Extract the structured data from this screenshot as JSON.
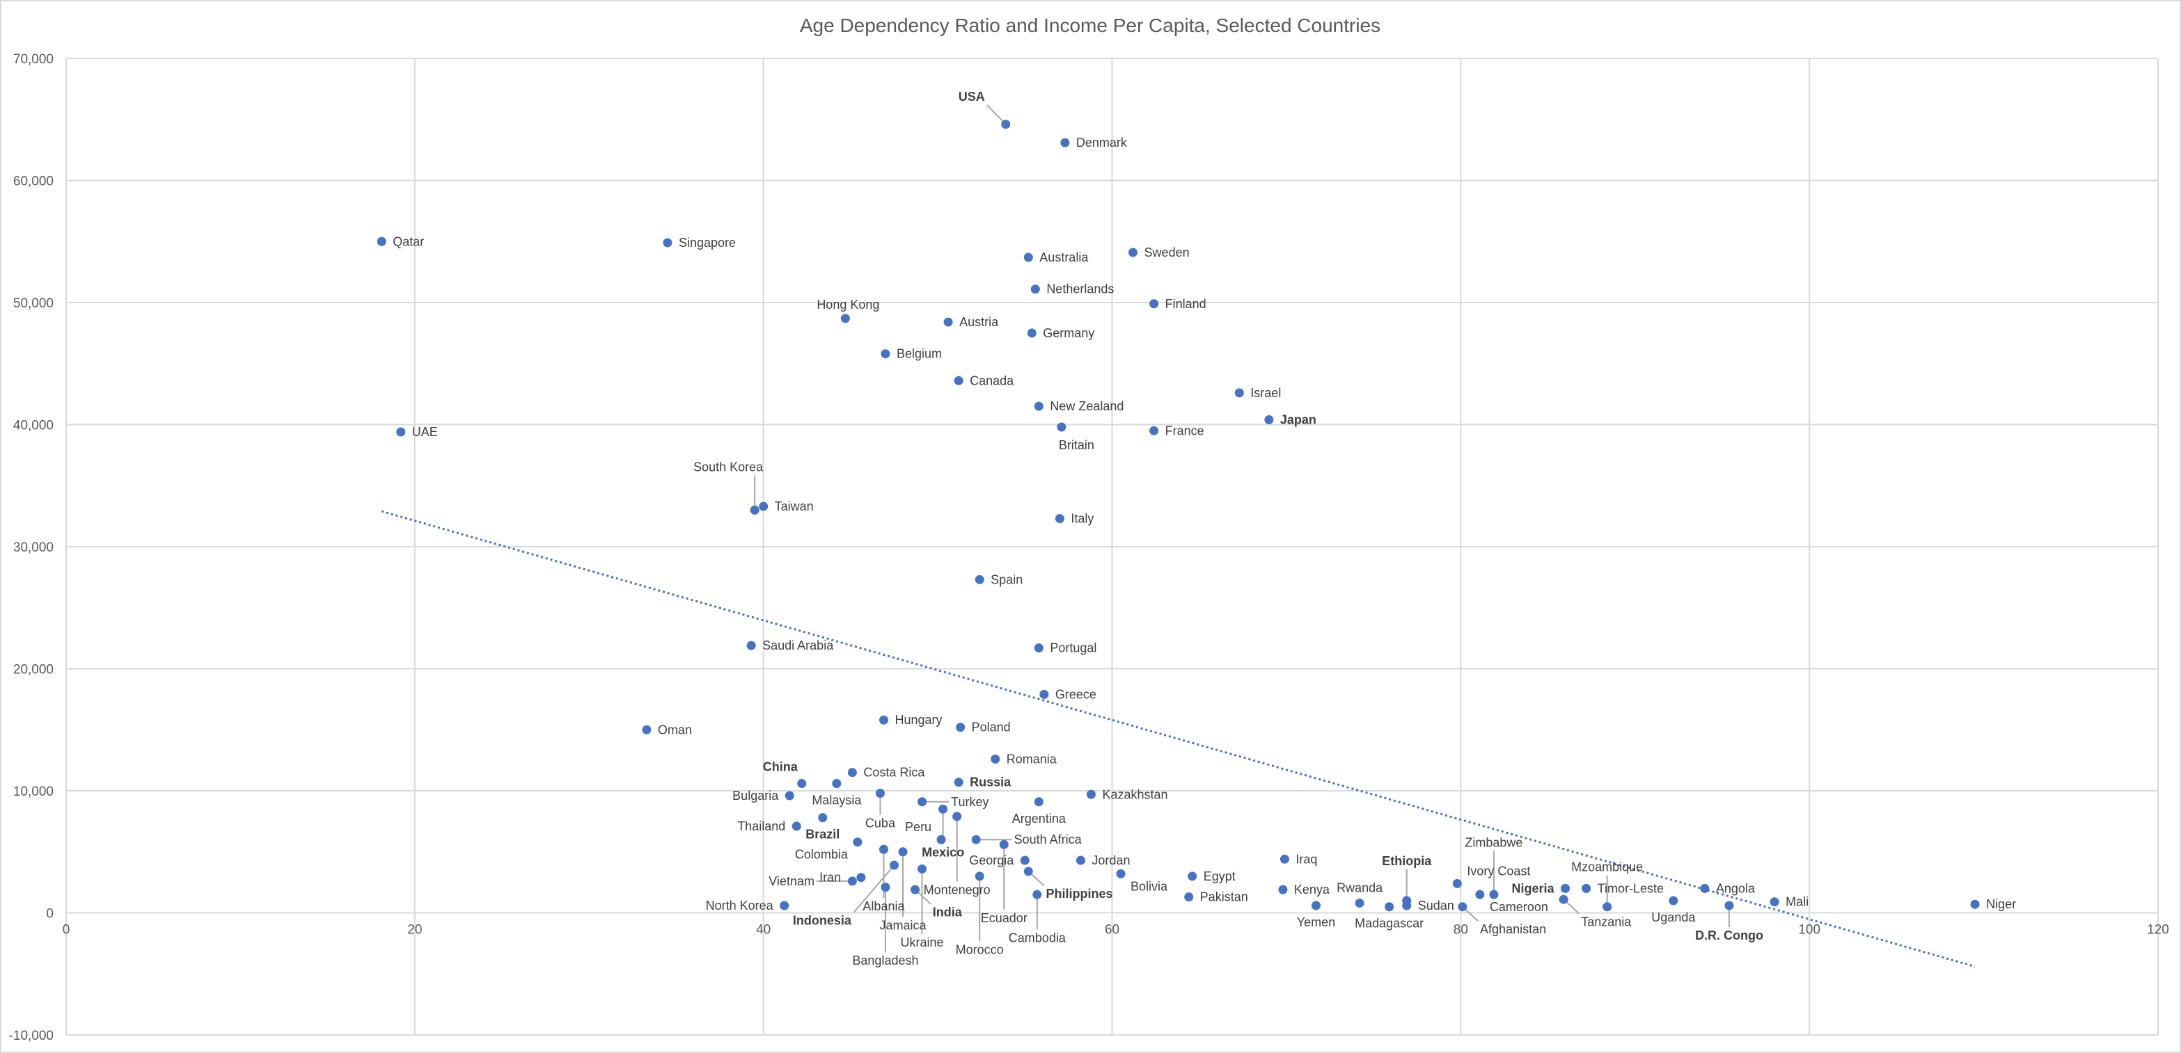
{
  "chart_data": {
    "type": "scatter",
    "title": "Age Dependency Ratio and Income Per Capita, Selected Countries",
    "xlabel": "",
    "ylabel": "",
    "xlim": [
      0,
      120
    ],
    "ylim": [
      -10000,
      70000
    ],
    "x_ticks": [
      0,
      20,
      40,
      60,
      80,
      100,
      120
    ],
    "x_tick_labels": [
      "0",
      "20",
      "40",
      "60",
      "80",
      "100",
      "120"
    ],
    "y_ticks": [
      -10000,
      0,
      10000,
      20000,
      30000,
      40000,
      50000,
      60000,
      70000
    ],
    "y_tick_labels": [
      "-10,000",
      "0",
      "10,000",
      "20,000",
      "30,000",
      "40,000",
      "50,000",
      "60,000",
      "70,000"
    ],
    "grid": true,
    "marker_color": "#4472C4",
    "trendline": {
      "type": "linear",
      "style": "dotted",
      "color": "#4472C4",
      "x": [
        18.1,
        109.5
      ],
      "y": [
        32900,
        -4400
      ]
    },
    "points": [
      {
        "name": "USA",
        "x": 53.9,
        "y": 64600,
        "bold": true
      },
      {
        "name": "Denmark",
        "x": 57.3,
        "y": 63100
      },
      {
        "name": "Qatar",
        "x": 18.1,
        "y": 55000
      },
      {
        "name": "Singapore",
        "x": 34.5,
        "y": 54900
      },
      {
        "name": "Australia",
        "x": 55.2,
        "y": 53700
      },
      {
        "name": "Sweden",
        "x": 61.2,
        "y": 54100
      },
      {
        "name": "Netherlands",
        "x": 55.6,
        "y": 51100
      },
      {
        "name": "Finland",
        "x": 62.4,
        "y": 49900
      },
      {
        "name": "Hong Kong",
        "x": 44.7,
        "y": 48700
      },
      {
        "name": "Austria",
        "x": 50.6,
        "y": 48400
      },
      {
        "name": "Germany",
        "x": 55.4,
        "y": 47500
      },
      {
        "name": "Belgium",
        "x": 47.0,
        "y": 45800
      },
      {
        "name": "Canada",
        "x": 51.2,
        "y": 43600
      },
      {
        "name": "Israel",
        "x": 67.3,
        "y": 42600
      },
      {
        "name": "New Zealand",
        "x": 55.8,
        "y": 41500
      },
      {
        "name": "Japan",
        "x": 69.0,
        "y": 40400,
        "bold": true
      },
      {
        "name": "Britain",
        "x": 57.1,
        "y": 39800
      },
      {
        "name": "France",
        "x": 62.4,
        "y": 39500
      },
      {
        "name": "UAE",
        "x": 19.2,
        "y": 39400
      },
      {
        "name": "Taiwan",
        "x": 40.0,
        "y": 33300
      },
      {
        "name": "South Korea",
        "x": 39.5,
        "y": 33000
      },
      {
        "name": "Italy",
        "x": 57.0,
        "y": 32300
      },
      {
        "name": "Spain",
        "x": 52.4,
        "y": 27300
      },
      {
        "name": "Saudi Arabia",
        "x": 39.3,
        "y": 21900
      },
      {
        "name": "Portugal",
        "x": 55.8,
        "y": 21700
      },
      {
        "name": "Greece",
        "x": 56.1,
        "y": 17900
      },
      {
        "name": "Oman",
        "x": 33.3,
        "y": 15000
      },
      {
        "name": "Hungary",
        "x": 46.9,
        "y": 15800
      },
      {
        "name": "Poland",
        "x": 51.3,
        "y": 15200
      },
      {
        "name": "Romania",
        "x": 53.3,
        "y": 12600
      },
      {
        "name": "China",
        "x": 42.2,
        "y": 10600,
        "bold": true
      },
      {
        "name": "Costa Rica",
        "x": 45.1,
        "y": 11500
      },
      {
        "name": "Malaysia",
        "x": 44.2,
        "y": 10600
      },
      {
        "name": "Russia",
        "x": 51.2,
        "y": 10700,
        "bold": true
      },
      {
        "name": "Bulgaria",
        "x": 41.5,
        "y": 9600
      },
      {
        "name": "Cuba",
        "x": 46.7,
        "y": 9800
      },
      {
        "name": "Kazakhstan",
        "x": 58.8,
        "y": 9700
      },
      {
        "name": "Turkey",
        "x": 49.1,
        "y": 9100
      },
      {
        "name": "Argentina",
        "x": 55.8,
        "y": 9100
      },
      {
        "name": "Mexico",
        "x": 50.3,
        "y": 8500,
        "bold": true
      },
      {
        "name": "Montenegro",
        "x": 51.1,
        "y": 7900
      },
      {
        "name": "Brazil",
        "x": 43.4,
        "y": 7800,
        "bold": true
      },
      {
        "name": "Thailand",
        "x": 41.9,
        "y": 7100
      },
      {
        "name": "Peru",
        "x": 50.2,
        "y": 6000
      },
      {
        "name": "South Africa",
        "x": 52.2,
        "y": 6000
      },
      {
        "name": "Colombia",
        "x": 45.4,
        "y": 5800
      },
      {
        "name": "Ecuador",
        "x": 53.8,
        "y": 5600
      },
      {
        "name": "Albania",
        "x": 46.9,
        "y": 5200
      },
      {
        "name": "Jamaica",
        "x": 48.0,
        "y": 5000
      },
      {
        "name": "Georgia",
        "x": 55.0,
        "y": 4300
      },
      {
        "name": "Jordan",
        "x": 58.2,
        "y": 4300
      },
      {
        "name": "Iraq",
        "x": 69.9,
        "y": 4400
      },
      {
        "name": "Indonesia",
        "x": 47.5,
        "y": 3900,
        "bold": true
      },
      {
        "name": "Ukraine",
        "x": 49.1,
        "y": 3600
      },
      {
        "name": "Philippines",
        "x": 55.2,
        "y": 3400,
        "bold": true
      },
      {
        "name": "Morocco",
        "x": 52.4,
        "y": 3000
      },
      {
        "name": "Bolivia",
        "x": 60.5,
        "y": 3200
      },
      {
        "name": "Egypt",
        "x": 64.6,
        "y": 3000
      },
      {
        "name": "Iran",
        "x": 45.6,
        "y": 2900
      },
      {
        "name": "Vietnam",
        "x": 45.1,
        "y": 2600
      },
      {
        "name": "Bangladesh",
        "x": 47.0,
        "y": 2100
      },
      {
        "name": "India",
        "x": 48.7,
        "y": 1900,
        "bold": true
      },
      {
        "name": "Cambodia",
        "x": 55.7,
        "y": 1500
      },
      {
        "name": "Pakistan",
        "x": 64.4,
        "y": 1300
      },
      {
        "name": "North Korea",
        "x": 41.2,
        "y": 600
      },
      {
        "name": "Kenya",
        "x": 69.8,
        "y": 1900
      },
      {
        "name": "Yemen",
        "x": 71.7,
        "y": 600
      },
      {
        "name": "Rwanda",
        "x": 74.2,
        "y": 800
      },
      {
        "name": "Madagascar",
        "x": 75.9,
        "y": 500
      },
      {
        "name": "Ethiopia",
        "x": 76.9,
        "y": 1000,
        "bold": true
      },
      {
        "name": "Sudan",
        "x": 76.9,
        "y": 600
      },
      {
        "name": "Ivory Coast",
        "x": 79.8,
        "y": 2400
      },
      {
        "name": "Afghanistan",
        "x": 80.1,
        "y": 500
      },
      {
        "name": "Cameroon",
        "x": 81.1,
        "y": 1500
      },
      {
        "name": "Zimbabwe",
        "x": 81.9,
        "y": 1500
      },
      {
        "name": "Nigeria",
        "x": 86.0,
        "y": 2000,
        "bold": true
      },
      {
        "name": "Timor-Leste",
        "x": 87.2,
        "y": 2000
      },
      {
        "name": "Tanzania",
        "x": 85.9,
        "y": 1100
      },
      {
        "name": "Mzoambique",
        "x": 88.4,
        "y": 500
      },
      {
        "name": "Uganda",
        "x": 92.2,
        "y": 1000
      },
      {
        "name": "Angola",
        "x": 94.0,
        "y": 2000
      },
      {
        "name": "D.R. Congo",
        "x": 95.4,
        "y": 600,
        "bold": true
      },
      {
        "name": "Mali",
        "x": 98.0,
        "y": 900
      },
      {
        "name": "Niger",
        "x": 109.5,
        "y": 700
      }
    ]
  }
}
